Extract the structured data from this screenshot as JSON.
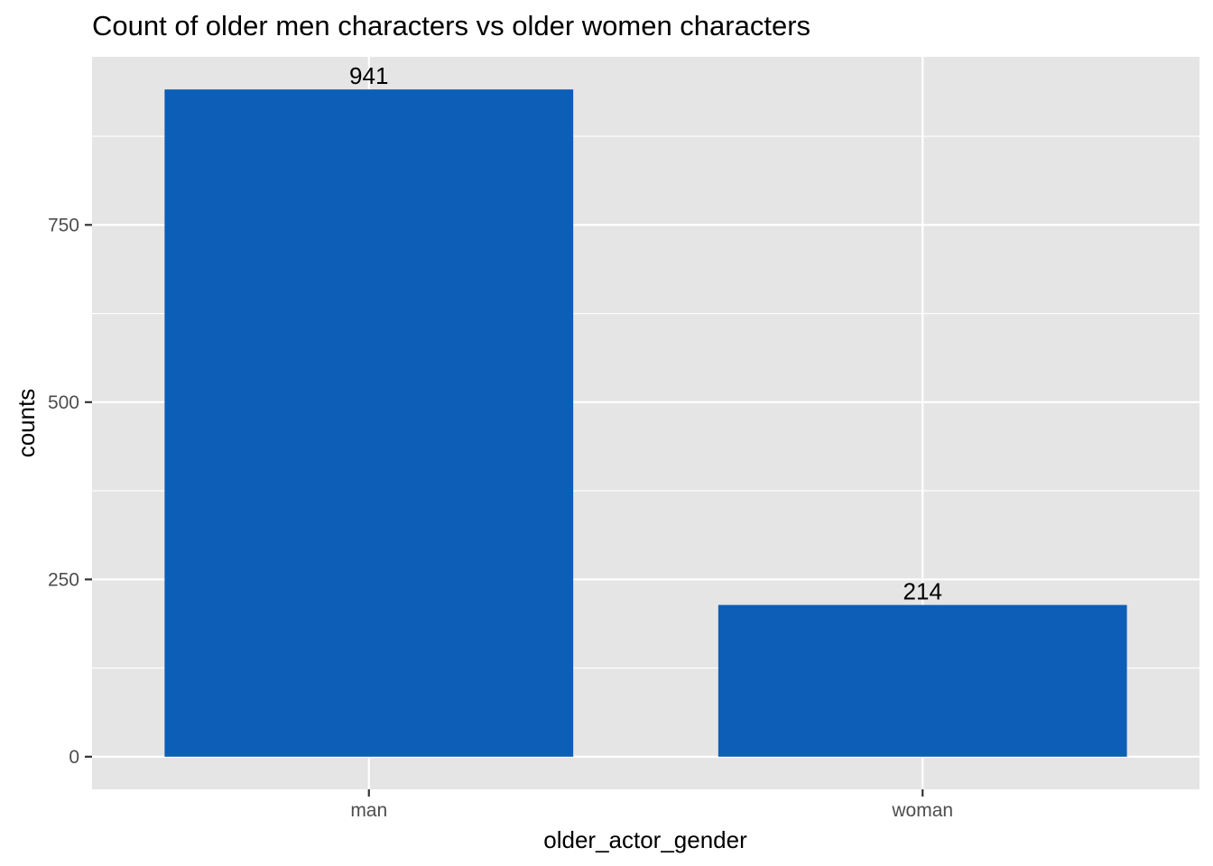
{
  "chart_data": {
    "type": "bar",
    "title": "Count of older men characters vs older women characters",
    "xlabel": "older_actor_gender",
    "ylabel": "counts",
    "categories": [
      "man",
      "woman"
    ],
    "values": [
      941,
      214
    ],
    "data_labels": [
      "941",
      "214"
    ],
    "ylim": [
      -46,
      987
    ],
    "y_ticks": [
      0,
      250,
      500,
      750
    ],
    "y_tick_labels": [
      "0",
      "250",
      "500",
      "750"
    ],
    "grid": true,
    "legend": "none",
    "colors": {
      "bar": "#0d5eb6",
      "panel": "#e5e5e5",
      "grid": "#ffffff"
    }
  }
}
